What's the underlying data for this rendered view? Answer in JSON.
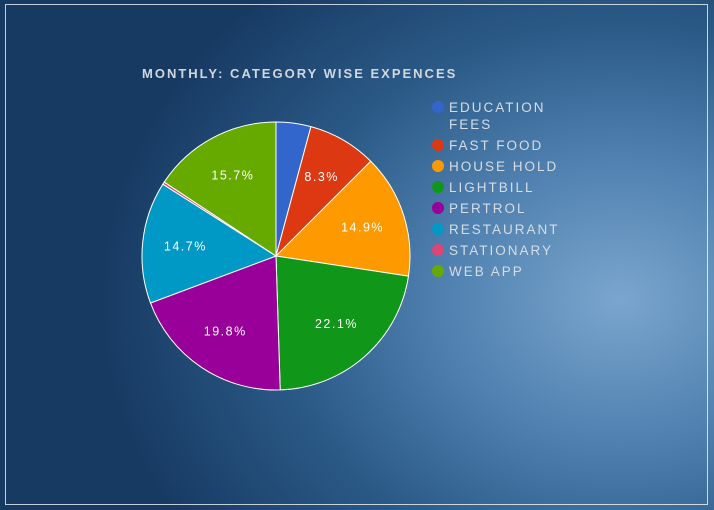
{
  "chart_data": {
    "type": "pie",
    "title": "MONTHLY: CATEGORY WISE EXPENCES",
    "legend_position": "right",
    "categories": [
      "EDUCATION FEES",
      "FAST FOOD",
      "HOUSE HOLD",
      "LIGHTBILL",
      "PERTROL",
      "RESTAURANT",
      "STATIONARY",
      "WEB APP"
    ],
    "values": [
      4.2,
      8.3,
      14.9,
      22.1,
      19.8,
      14.7,
      0.3,
      15.7
    ],
    "value_labels": [
      "",
      "8.3%",
      "14.9%",
      "22.1%",
      "19.8%",
      "14.7%",
      "",
      "15.7%"
    ],
    "colors": [
      "#3366cc",
      "#dc3912",
      "#ff9900",
      "#109618",
      "#990099",
      "#0099c6",
      "#dd4477",
      "#66aa00"
    ]
  }
}
